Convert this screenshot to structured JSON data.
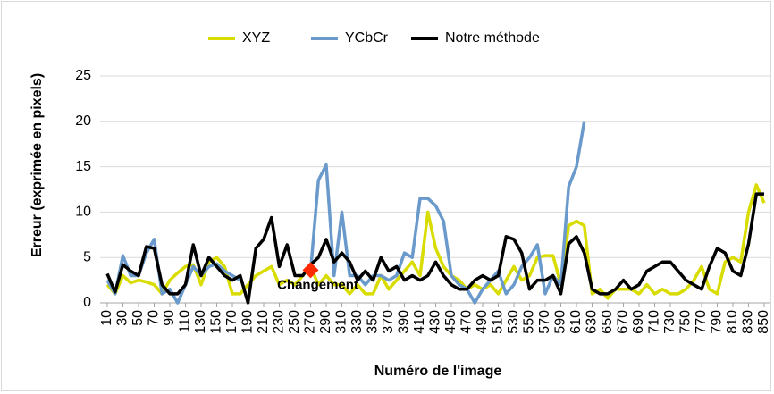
{
  "chart_data": {
    "type": "line",
    "x_label": "Numéro de l'image",
    "y_label": "Erreur (exprimée en pixels)",
    "x": [
      10,
      20,
      30,
      40,
      50,
      60,
      70,
      80,
      90,
      100,
      110,
      120,
      130,
      140,
      150,
      160,
      170,
      180,
      190,
      200,
      210,
      220,
      230,
      240,
      250,
      260,
      270,
      280,
      290,
      300,
      310,
      320,
      330,
      340,
      350,
      360,
      370,
      380,
      390,
      400,
      410,
      420,
      430,
      440,
      450,
      460,
      470,
      480,
      490,
      500,
      510,
      520,
      530,
      540,
      550,
      560,
      570,
      580,
      590,
      600,
      610,
      620,
      630,
      640,
      650,
      660,
      670,
      680,
      690,
      700,
      710,
      720,
      730,
      740,
      750,
      760,
      770,
      780,
      790,
      800,
      810,
      820,
      830,
      840,
      850
    ],
    "series": [
      {
        "name": "XYZ",
        "color": "#d9dc00",
        "values": [
          2,
          1,
          3,
          2.2,
          2.5,
          2.3,
          2,
          1,
          2.5,
          3.3,
          4,
          4.2,
          2,
          4.5,
          5,
          4,
          1,
          1,
          2,
          3,
          3.5,
          4,
          2,
          2.5,
          2,
          3,
          4,
          2,
          3,
          2,
          2,
          1,
          2,
          1,
          1,
          3,
          1.5,
          2.5,
          3.5,
          4.5,
          3,
          10,
          6,
          4,
          3,
          2.5,
          1.5,
          2,
          1.5,
          2,
          1,
          2.5,
          4,
          2.5,
          3,
          5,
          5.2,
          5.2,
          2,
          8.5,
          9,
          8.5,
          1,
          1.5,
          0.5,
          1.5,
          1.5,
          1.5,
          1,
          2,
          1,
          1.5,
          1,
          1,
          1.5,
          2.5,
          4,
          1.5,
          1,
          4.5,
          5,
          4.5,
          10,
          13,
          11
        ]
      },
      {
        "name": "YCbCr",
        "color": "#6a9acb",
        "values": [
          2.5,
          1,
          5.2,
          3,
          3,
          5.5,
          7,
          1,
          1.5,
          0,
          2,
          4,
          3,
          4,
          4.3,
          3.5,
          3,
          2.5,
          null,
          null,
          null,
          null,
          null,
          null,
          null,
          null,
          3.5,
          13.5,
          15.2,
          3,
          10,
          3,
          3,
          2,
          3,
          3,
          2.5,
          3,
          5.5,
          5,
          11.5,
          11.5,
          10.7,
          9,
          3,
          2,
          1.5,
          0,
          1.5,
          2.5,
          3.5,
          1,
          2,
          4,
          5,
          6.4,
          1,
          3,
          2,
          12.8,
          15,
          20,
          null,
          null,
          null,
          null,
          null,
          null,
          null,
          null,
          null,
          null,
          null,
          null,
          null,
          null,
          null,
          null,
          null,
          null,
          null,
          null,
          null,
          null,
          null
        ]
      },
      {
        "name": "Notre méthode",
        "color": "#000000",
        "values": [
          3.2,
          1.2,
          4.2,
          3.5,
          3,
          6.2,
          6,
          2,
          1,
          1,
          2,
          6.4,
          3,
          5,
          4,
          3,
          2.5,
          3,
          0,
          6,
          7,
          9.4,
          4,
          6.4,
          3,
          3,
          4.2,
          5,
          7,
          4.5,
          5.5,
          4.5,
          2.5,
          3.5,
          2.5,
          5,
          3.5,
          4,
          2.5,
          3,
          2.5,
          3,
          4.5,
          3,
          2,
          1.5,
          1.5,
          2.5,
          3,
          2.5,
          3,
          7.3,
          7,
          5.5,
          1.5,
          2.5,
          2.5,
          3,
          1,
          6.5,
          7.3,
          5.5,
          1.5,
          1,
          1,
          1.5,
          2.5,
          1.5,
          2,
          3.5,
          4,
          4.5,
          4.5,
          3.5,
          2.5,
          2,
          1.5,
          4,
          6,
          5.5,
          3.5,
          3,
          6.5,
          12,
          12
        ]
      }
    ],
    "annotation": {
      "text": "Changement",
      "x": 270,
      "y": 3.6,
      "color": "#ff2a00"
    },
    "xlim": [
      10,
      850
    ],
    "xticks": [
      10,
      30,
      50,
      70,
      90,
      110,
      130,
      150,
      170,
      190,
      210,
      230,
      250,
      270,
      290,
      310,
      330,
      350,
      370,
      390,
      410,
      430,
      450,
      470,
      490,
      510,
      530,
      550,
      570,
      590,
      610,
      630,
      650,
      670,
      690,
      710,
      730,
      750,
      770,
      790,
      810,
      830,
      850
    ],
    "ylim": [
      0,
      25
    ],
    "yticks": [
      0,
      5,
      10,
      15,
      20,
      25
    ],
    "grid": true,
    "legend": "top"
  }
}
